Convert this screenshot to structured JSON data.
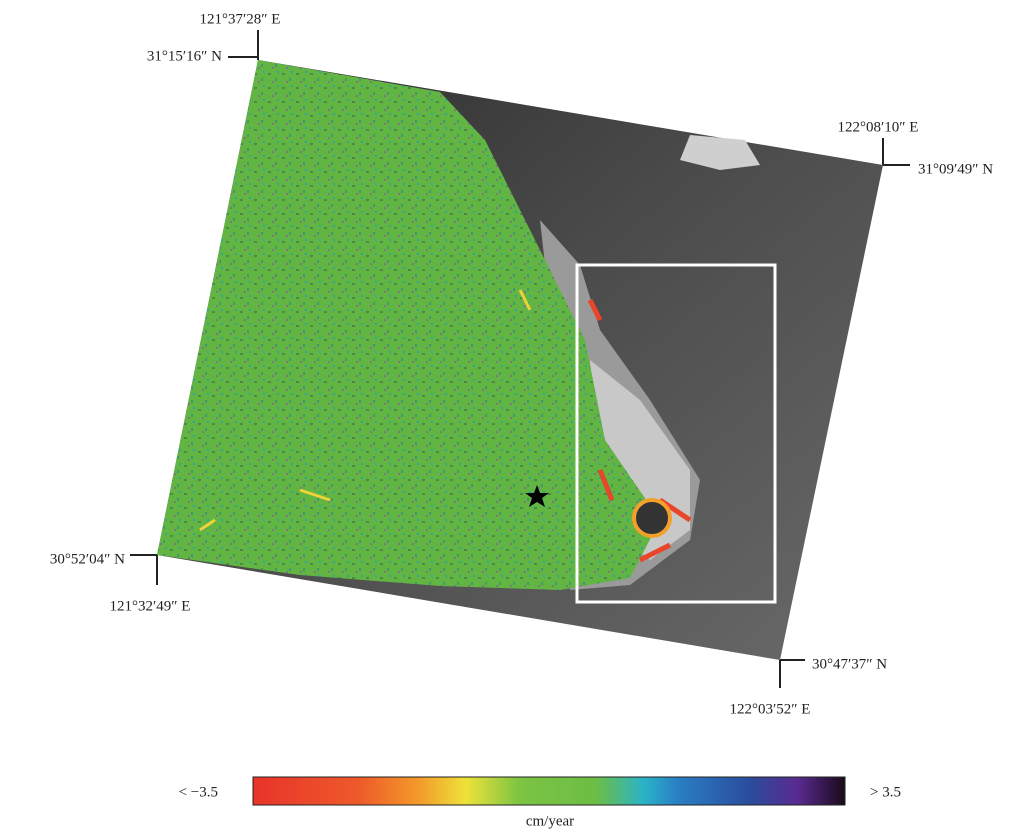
{
  "map": {
    "corners": {
      "top_left": {
        "lon": "121°37′28″ E",
        "lat": "31°15′16″ N"
      },
      "top_right": {
        "lon": "122°08′10″ E",
        "lat": "31°09′49″ N"
      },
      "bottom_left": {
        "lon": "121°32′49″ E",
        "lat": "30°52′04″ N"
      },
      "bottom_right": {
        "lon": "122°03′52″ E",
        "lat": "30°47′37″ N"
      }
    },
    "legend": {
      "min_label": "< −3.5",
      "max_label": "> 3.5",
      "unit": "cm/year"
    }
  }
}
